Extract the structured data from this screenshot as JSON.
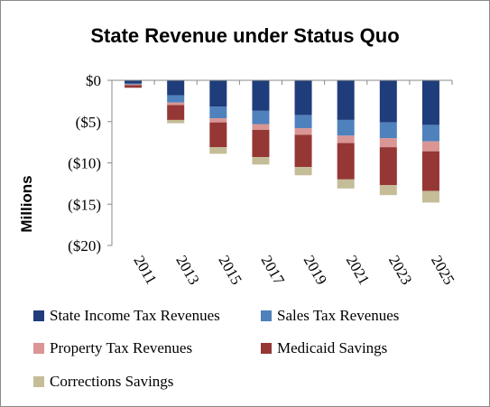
{
  "chart_data": {
    "type": "bar",
    "stacked": true,
    "title": "State Revenue under Status Quo",
    "ylabel": "Millions",
    "xlabel": "",
    "categories": [
      "2011",
      "2013",
      "2015",
      "2017",
      "2019",
      "2021",
      "2023",
      "2025"
    ],
    "ylim": [
      -20,
      0
    ],
    "yticks": [
      0,
      -5,
      -10,
      -15,
      -20
    ],
    "ytick_labels": [
      "$0",
      "($5)",
      "($10)",
      "($15)",
      "($20)"
    ],
    "grid": false,
    "legend_position": "bottom",
    "series": [
      {
        "name": "State Income Tax Revenues",
        "color": "#1f3d7a",
        "values": [
          -0.4,
          -1.8,
          -3.2,
          -3.7,
          -4.2,
          -4.8,
          -5.1,
          -5.4
        ]
      },
      {
        "name": "Sales Tax Revenues",
        "color": "#4f81bd",
        "values": [
          -0.1,
          -0.9,
          -1.4,
          -1.6,
          -1.6,
          -1.9,
          -1.9,
          -2.0
        ]
      },
      {
        "name": "Property Tax Revenues",
        "color": "#d99694",
        "values": [
          -0.1,
          -0.3,
          -0.5,
          -0.7,
          -0.8,
          -0.9,
          -1.1,
          -1.2
        ]
      },
      {
        "name": "Medicaid Savings",
        "color": "#953735",
        "values": [
          -0.3,
          -1.8,
          -3.0,
          -3.3,
          -3.9,
          -4.4,
          -4.6,
          -4.8
        ]
      },
      {
        "name": "Corrections Savings",
        "color": "#c4bd97",
        "values": [
          0,
          -0.4,
          -0.8,
          -0.9,
          -1.0,
          -1.1,
          -1.2,
          -1.4
        ]
      }
    ]
  }
}
